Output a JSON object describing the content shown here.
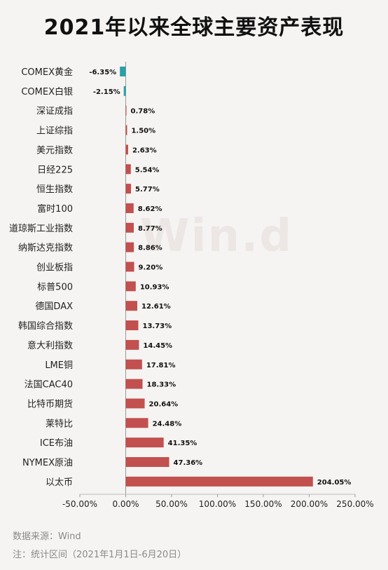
{
  "title": "2021年以来全球主要资产表现",
  "watermark": "Win.d",
  "footnotes": {
    "source": "数据来源：Wind",
    "note": "注：统计区间（2021年1月1日-6月20日）"
  },
  "colors": {
    "negative": "#2a9fa6",
    "positive": "#c1504f",
    "axis": "#888888",
    "background": "#f6f4f2"
  },
  "chart_data": {
    "type": "bar",
    "orientation": "horizontal",
    "categories": [
      "COMEX黄金",
      "COMEX白银",
      "深证成指",
      "上证综指",
      "美元指数",
      "日经225",
      "恒生指数",
      "富时100",
      "道琼斯工业指数",
      "纳斯达克指数",
      "创业板指",
      "标普500",
      "德国DAX",
      "韩国综合指数",
      "意大利指数",
      "LME铜",
      "法国CAC40",
      "比特币期货",
      "莱特比",
      "ICE布油",
      "NYMEX原油",
      "以太币"
    ],
    "values": [
      -6.35,
      -2.15,
      0.78,
      1.5,
      2.63,
      5.54,
      5.77,
      8.62,
      8.77,
      8.86,
      9.2,
      10.93,
      12.61,
      13.73,
      14.45,
      17.81,
      18.33,
      20.64,
      24.48,
      41.35,
      47.36,
      204.05
    ],
    "value_labels": [
      "-6.35%",
      "-2.15%",
      "0.78%",
      "1.50%",
      "2.63%",
      "5.54%",
      "5.77%",
      "8.62%",
      "8.77%",
      "8.86%",
      "9.20%",
      "10.93%",
      "12.61%",
      "13.73%",
      "14.45%",
      "17.81%",
      "18.33%",
      "20.64%",
      "24.48%",
      "41.35%",
      "47.36%",
      "204.05%"
    ],
    "xlim": [
      -50,
      250
    ],
    "xticks": [
      -50,
      0,
      50,
      100,
      150,
      200,
      250
    ],
    "xtick_labels": [
      "-50.00%",
      "0.00%",
      "50.00%",
      "100.00%",
      "150.00%",
      "200.00%",
      "250.00%"
    ],
    "grid": false
  }
}
